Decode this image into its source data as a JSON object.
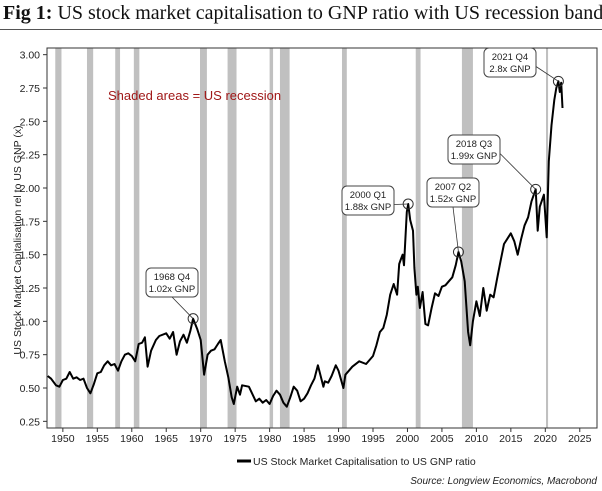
{
  "title": {
    "prefix": "Fig 1:",
    "text": "US stock market capitalisation to GNP ratio with US recession bands"
  },
  "source": "Source: Longview Economics, Macrobond",
  "note": "Shaded areas = US recession",
  "colors": {
    "line": "#000000",
    "recession": "#c0c0c0",
    "note": "#a01818",
    "frame": "#333333"
  },
  "chart_data": {
    "type": "line",
    "title": "US stock market capitalisation to GNP ratio with US recession bands",
    "xlabel": "",
    "ylabel": "US Stock Market Capitalisation rel to US GNP (x)",
    "xlim": [
      1947.7,
      2027.5
    ],
    "ylim": [
      0.2,
      3.05
    ],
    "x_ticks": [
      "1950",
      "1955",
      "1960",
      "1965",
      "1970",
      "1975",
      "1980",
      "1985",
      "1990",
      "1995",
      "2000",
      "2005",
      "2010",
      "2015",
      "2020",
      "2025"
    ],
    "y_ticks": [
      "0.25",
      "0.50",
      "0.75",
      "1.00",
      "1.25",
      "1.50",
      "1.75",
      "2.00",
      "2.25",
      "2.50",
      "2.75",
      "3.00"
    ],
    "grid": false,
    "legend": "bottom",
    "series": [
      {
        "name": "US Stock Market Capitalisation to US GNP ratio",
        "x": [
          1947.8,
          1948.3,
          1949,
          1949.5,
          1950,
          1950.5,
          1951,
          1951.5,
          1952,
          1952.5,
          1953,
          1953.5,
          1954,
          1954.5,
          1955,
          1955.5,
          1956,
          1956.5,
          1957,
          1957.5,
          1958,
          1958.5,
          1959,
          1959.5,
          1960,
          1960.5,
          1961,
          1961.5,
          1961.9,
          1962.3,
          1962.8,
          1963.5,
          1964,
          1965,
          1965.5,
          1966,
          1966.5,
          1967,
          1967.5,
          1968,
          1968.5,
          1968.9,
          1969.5,
          1970,
          1970.5,
          1971,
          1971.5,
          1972,
          1972.5,
          1972.9,
          1973.5,
          1974,
          1974.5,
          1974.8,
          1975.3,
          1975.7,
          1976,
          1977,
          1978,
          1978.5,
          1979,
          1979.5,
          1980,
          1980.5,
          1981,
          1981.5,
          1982,
          1982.5,
          1983,
          1983.5,
          1984,
          1984.5,
          1985,
          1985.5,
          1986,
          1986.5,
          1987,
          1987.8,
          1988,
          1988.5,
          1989,
          1989.6,
          1990,
          1990.7,
          1991,
          1991.5,
          1992,
          1993,
          1994,
          1995,
          1995.5,
          1996,
          1996.5,
          1997,
          1997.5,
          1998,
          1998.5,
          1998.8,
          1999,
          1999.3,
          1999.5,
          1999.9,
          2000.1,
          2000.4,
          2000.8,
          2001,
          2001.3,
          2001.5,
          2001.8,
          2002.2,
          2002.6,
          2003,
          2003.5,
          2004,
          2004.5,
          2005,
          2005.5,
          2006,
          2006.5,
          2007,
          2007.4,
          2007.8,
          2008.3,
          2008.8,
          2009.1,
          2009.5,
          2010,
          2010.5,
          2011,
          2011.5,
          2012,
          2012.5,
          2013,
          2013.5,
          2014,
          2014.5,
          2015,
          2015.5,
          2016,
          2016.5,
          2017,
          2017.5,
          2018,
          2018.6,
          2018.9,
          2019.2,
          2019.8,
          2020.2,
          2020.5,
          2020.9,
          2021.3,
          2021.6,
          2021.9,
          2022.1,
          2022.3,
          2022.5
        ],
        "y": [
          0.59,
          0.57,
          0.52,
          0.51,
          0.56,
          0.57,
          0.62,
          0.57,
          0.58,
          0.56,
          0.57,
          0.5,
          0.46,
          0.53,
          0.61,
          0.62,
          0.67,
          0.7,
          0.67,
          0.68,
          0.63,
          0.7,
          0.75,
          0.76,
          0.74,
          0.7,
          0.83,
          0.84,
          0.88,
          0.66,
          0.78,
          0.86,
          0.89,
          0.91,
          0.87,
          0.92,
          0.75,
          0.85,
          0.9,
          0.84,
          0.93,
          1.02,
          0.94,
          0.86,
          0.6,
          0.75,
          0.78,
          0.79,
          0.83,
          0.86,
          0.7,
          0.58,
          0.43,
          0.38,
          0.51,
          0.45,
          0.52,
          0.51,
          0.4,
          0.42,
          0.39,
          0.41,
          0.38,
          0.44,
          0.48,
          0.45,
          0.39,
          0.36,
          0.43,
          0.51,
          0.48,
          0.4,
          0.42,
          0.46,
          0.52,
          0.57,
          0.67,
          0.51,
          0.55,
          0.54,
          0.59,
          0.67,
          0.63,
          0.5,
          0.6,
          0.63,
          0.66,
          0.7,
          0.68,
          0.74,
          0.82,
          0.92,
          0.95,
          1.05,
          1.2,
          1.28,
          1.2,
          1.43,
          1.46,
          1.5,
          1.42,
          1.82,
          1.88,
          1.76,
          1.68,
          1.4,
          1.2,
          1.26,
          1.1,
          1.22,
          0.98,
          0.97,
          1.1,
          1.21,
          1.19,
          1.26,
          1.27,
          1.3,
          1.33,
          1.42,
          1.52,
          1.45,
          1.3,
          0.92,
          0.82,
          1.0,
          1.15,
          1.04,
          1.25,
          1.08,
          1.2,
          1.18,
          1.32,
          1.45,
          1.58,
          1.62,
          1.66,
          1.6,
          1.5,
          1.62,
          1.72,
          1.78,
          1.9,
          1.99,
          1.68,
          1.86,
          1.95,
          1.63,
          2.2,
          2.47,
          2.66,
          2.75,
          2.8,
          2.72,
          2.79,
          2.6
        ]
      }
    ],
    "recessions": [
      [
        1948.9,
        1949.8
      ],
      [
        1953.5,
        1954.4
      ],
      [
        1957.6,
        1958.3
      ],
      [
        1960.3,
        1961.1
      ],
      [
        1969.9,
        1970.9
      ],
      [
        1973.9,
        1975.2
      ],
      [
        1980.0,
        1980.5
      ],
      [
        1981.5,
        1982.9
      ],
      [
        1990.5,
        1991.2
      ],
      [
        2001.2,
        2001.9
      ],
      [
        2007.9,
        2009.5
      ],
      [
        2020.1,
        2020.4
      ]
    ],
    "annotations": [
      {
        "line1": "1968 Q4",
        "line2": "1.02x GNP",
        "x": 1968.9,
        "y": 1.02
      },
      {
        "line1": "2000 Q1",
        "line2": "1.88x GNP",
        "x": 2000.1,
        "y": 1.88
      },
      {
        "line1": "2007 Q2",
        "line2": "1.52x GNP",
        "x": 2007.4,
        "y": 1.52
      },
      {
        "line1": "2018 Q3",
        "line2": "1.99x GNP",
        "x": 2018.6,
        "y": 1.99
      },
      {
        "line1": "2021 Q4",
        "line2": "2.8x GNP",
        "x": 2021.9,
        "y": 2.8
      }
    ]
  }
}
